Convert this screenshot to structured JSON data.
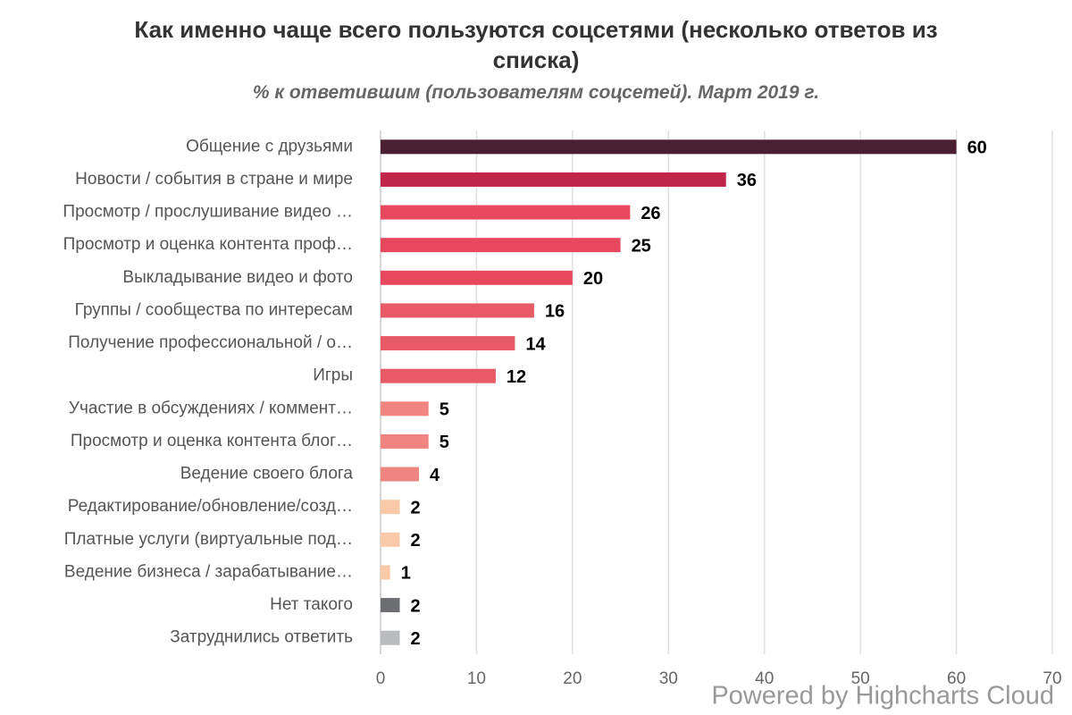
{
  "chart_data": {
    "type": "bar",
    "orientation": "horizontal",
    "title": "Как именно чаще всего пользуются соцсетями (несколько ответов из списка)",
    "subtitle": "% к ответившим (пользователям соцсетей). Март 2019 г.",
    "categories": [
      "Общение с друзьями",
      "Новости / события в стране и мире",
      "Просмотр / прослушивание видео …",
      "Просмотр и оценка контента проф…",
      "Выкладывание видео и фото",
      "Группы / сообщества по интересам",
      "Получение профессиональной / о…",
      "Игры",
      "Участие в обсуждениях / коммент…",
      "Просмотр и оценка контента блог…",
      "Ведение своего блога",
      "Редактирование/обновление/созд…",
      "Платные услуги (виртуальные под…",
      "Ведение бизнеса / зарабатывание…",
      "Нет такого",
      "Затруднились ответить"
    ],
    "values": [
      60,
      36,
      26,
      25,
      20,
      16,
      14,
      12,
      5,
      5,
      4,
      2,
      2,
      1,
      2,
      2
    ],
    "colors": [
      "#4a1f31",
      "#c0264a",
      "#e8485f",
      "#e8485f",
      "#e8485f",
      "#e85a65",
      "#e85a65",
      "#e85a65",
      "#f08480",
      "#f08480",
      "#f08480",
      "#f9c9a9",
      "#f9c9a9",
      "#f9c9a9",
      "#6d6e72",
      "#b9bbbe"
    ],
    "xlim": [
      0,
      70
    ],
    "xticks": [
      0,
      10,
      20,
      30,
      40,
      50,
      60,
      70
    ],
    "grid": true,
    "credits": "Powered by Highcharts Cloud"
  }
}
